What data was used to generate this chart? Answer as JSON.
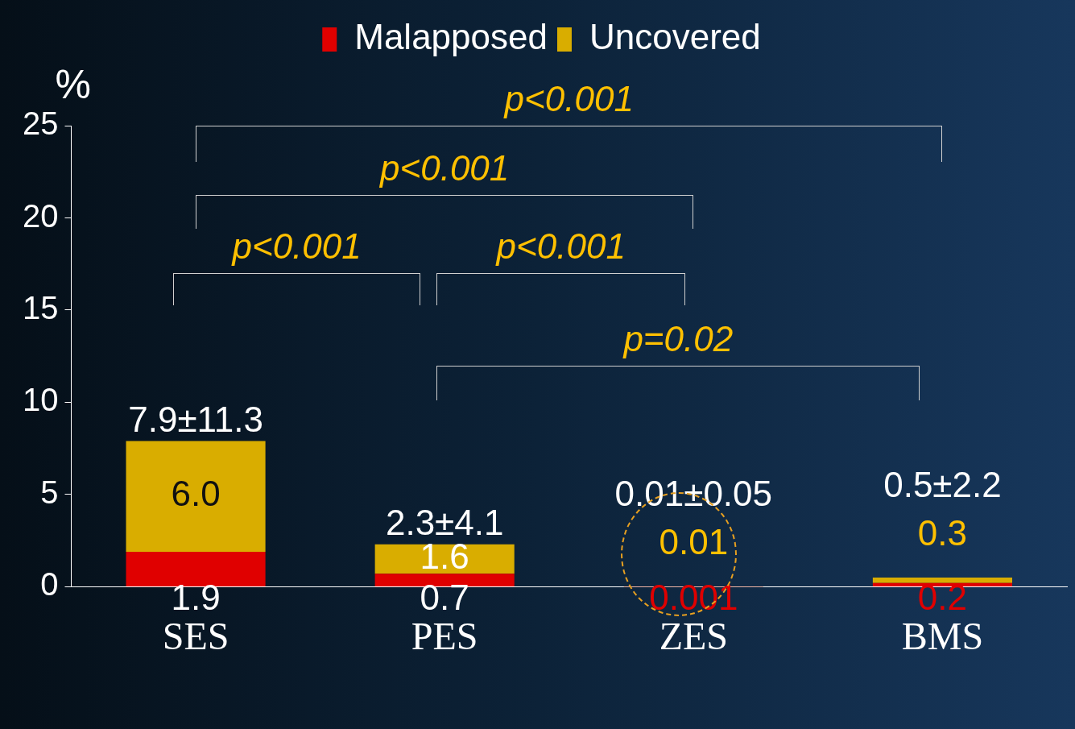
{
  "chart_data": {
    "type": "bar",
    "stacked": true,
    "ylabel": "%",
    "categories": [
      "SES",
      "PES",
      "ZES",
      "BMS"
    ],
    "series": [
      {
        "name": "Malapposed",
        "color": "#e00000",
        "values": [
          1.9,
          0.7,
          0.001,
          0.2
        ],
        "value_labels": [
          "1.9",
          "0.7",
          "0.001",
          "0.2"
        ]
      },
      {
        "name": "Uncovered",
        "color": "#d9ad00",
        "values": [
          6.0,
          1.6,
          0.01,
          0.3
        ],
        "value_labels": [
          "6.0",
          "1.6",
          "0.01",
          "0.3"
        ]
      }
    ],
    "totals": [
      "7.9±11.3",
      "2.3±4.1",
      "0.01±0.05",
      "0.5±2.2"
    ],
    "ylim": [
      0,
      25
    ],
    "yticks": [
      0,
      5,
      10,
      15,
      20,
      25
    ],
    "grid": false,
    "legend": "top",
    "annotations": [
      "p<0.001",
      "p<0.001",
      "p<0.001",
      "p<0.001",
      "p=0.02"
    ]
  }
}
